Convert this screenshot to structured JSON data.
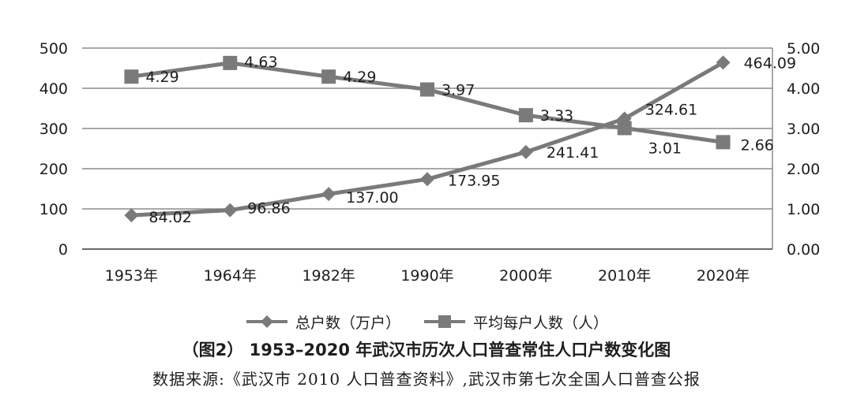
{
  "chart_data": {
    "type": "line",
    "categories": [
      "1953年",
      "1964年",
      "1982年",
      "1990年",
      "2000年",
      "2010年",
      "2020年"
    ],
    "series": [
      {
        "name": "总户数（万户）",
        "axis": "left",
        "marker": "diamond",
        "values": [
          84.02,
          96.86,
          137.0,
          173.95,
          241.41,
          324.61,
          464.09
        ],
        "labels": [
          "84.02",
          "96.86",
          "137.00",
          "173.95",
          "241.41",
          "324.61",
          "464.09"
        ]
      },
      {
        "name": "平均每户人数（人）",
        "axis": "right",
        "marker": "square",
        "values": [
          4.29,
          4.63,
          4.29,
          3.97,
          3.33,
          3.01,
          2.66
        ],
        "labels": [
          "4.29",
          "4.63",
          "4.29",
          "3.97",
          "3.33",
          "3.01",
          "2.66"
        ]
      }
    ],
    "y_left": {
      "ylim": [
        0,
        500
      ],
      "ticks": [
        "0",
        "100",
        "200",
        "300",
        "400",
        "500"
      ]
    },
    "y_right": {
      "ylim": [
        0,
        5
      ],
      "ticks": [
        "0.00",
        "1.00",
        "2.00",
        "3.00",
        "4.00",
        "5.00"
      ]
    },
    "grid": true,
    "legend_position": "bottom",
    "line_color": "#7a7a7a"
  },
  "title": "（图2） 1953–2020 年武汉市历次人口普查常住人口户数变化图",
  "source": "数据来源:《武汉市 2010 人口普查资料》,武汉市第七次全国人口普查公报"
}
